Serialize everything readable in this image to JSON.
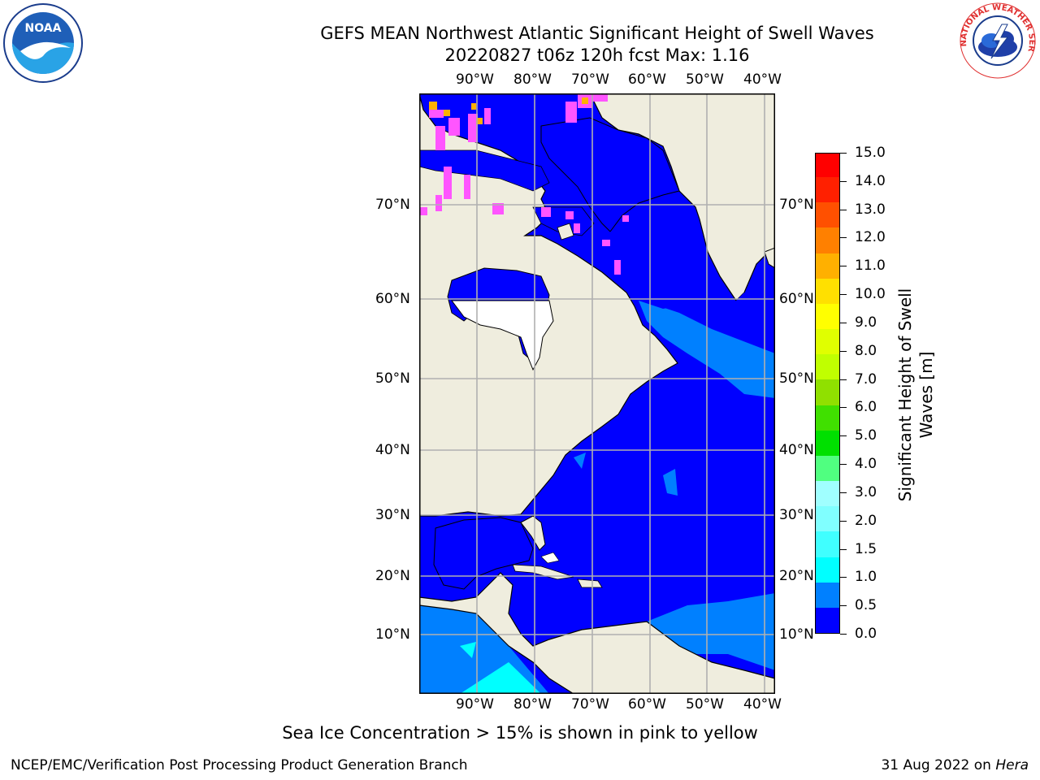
{
  "title_line1": "GEFS MEAN Northwest Atlantic Significant Height of Swell Waves",
  "title_line2": "20220827 t06z 120h fcst   Max: 1.16",
  "logos": {
    "left": "NOAA",
    "right": "NATIONAL WEATHER SERVICE"
  },
  "map": {
    "lon_labels": [
      "90°W",
      "80°W",
      "70°W",
      "60°W",
      "50°W",
      "40°W"
    ],
    "lat_labels": [
      "70°N",
      "60°N",
      "50°N",
      "40°N",
      "30°N",
      "20°N",
      "10°N"
    ],
    "colors": {
      "land": "#efedde",
      "ocean_low": "#0000ff",
      "ocean_mid": "#0080ff",
      "ocean_high": "#00ffff",
      "sea_ice": "#ff55ff",
      "ice_high": "#ffb000",
      "grid": "#b0b0b0"
    }
  },
  "colorbar": {
    "ticks": [
      "15.0",
      "14.0",
      "13.0",
      "12.0",
      "11.0",
      "10.0",
      "9.0",
      "8.0",
      "7.0",
      "6.0",
      "5.0",
      "4.0",
      "3.0",
      "2.0",
      "1.5",
      "1.0",
      "0.5",
      "0.0"
    ],
    "colors": [
      "#0000ff",
      "#0080ff",
      "#00ffff",
      "#40ffff",
      "#80ffff",
      "#a0ffff",
      "#50ff80",
      "#00e000",
      "#40e000",
      "#90e000",
      "#c0ff00",
      "#e0ff00",
      "#ffff00",
      "#ffe000",
      "#ffb000",
      "#ff8000",
      "#ff5000",
      "#ff2000",
      "#ff0000"
    ],
    "label_line1": "Significant Height of Swell",
    "label_line2": "Waves [m]"
  },
  "note": "Sea Ice Concentration > 15% is shown in pink to yellow",
  "footer": {
    "left": "NCEP/EMC/Verification Post Processing Product Generation Branch",
    "date": "31 Aug 2022 on ",
    "host": "Hera"
  }
}
